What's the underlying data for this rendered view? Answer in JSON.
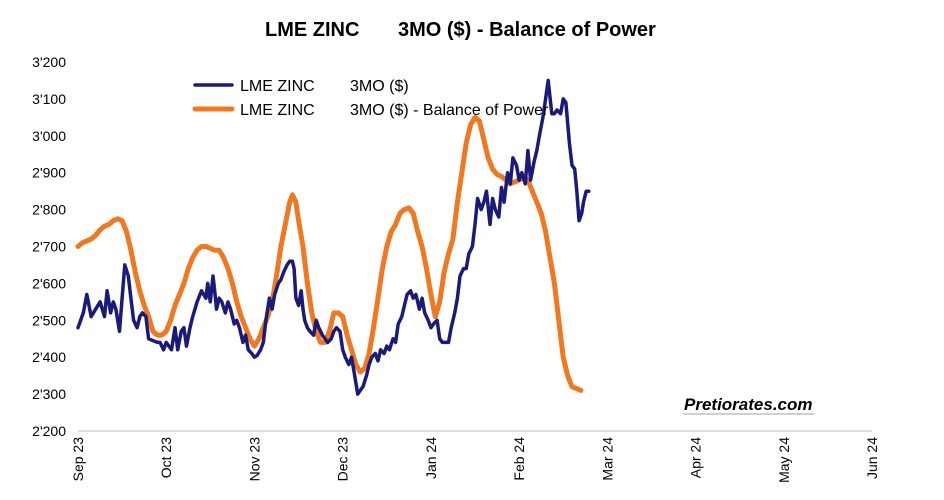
{
  "chart_data": {
    "type": "line",
    "title": "LME ZINC       3MO ($) - Balance of Power",
    "title_parts": [
      "LME ZINC",
      "3MO ($) - Balance of Power"
    ],
    "xlabel": "",
    "ylabel": "",
    "ylim": [
      2200,
      3200
    ],
    "yticks": [
      2200,
      2300,
      2400,
      2500,
      2600,
      2700,
      2800,
      2900,
      3000,
      3100,
      3200
    ],
    "ytick_labels": [
      "2'200",
      "2'300",
      "2'400",
      "2'500",
      "2'600",
      "2'700",
      "2'800",
      "2'900",
      "3'000",
      "3'100",
      "3'200"
    ],
    "xticks": [
      "Sep 23",
      "Oct 23",
      "Nov 23",
      "Dec 23",
      "Jan 24",
      "Feb 24",
      "Mar 24",
      "Apr 24",
      "May 24",
      "Jun 24"
    ],
    "grid": false,
    "legend_position": "top-left",
    "series": [
      {
        "name": "LME ZINC       3MO ($)",
        "legend_parts": [
          "LME ZINC",
          "3MO ($)"
        ],
        "color": "#1a1a7a",
        "points": [
          [
            0.0,
            2480
          ],
          [
            0.06,
            2520
          ],
          [
            0.1,
            2570
          ],
          [
            0.15,
            2510
          ],
          [
            0.2,
            2530
          ],
          [
            0.25,
            2550
          ],
          [
            0.3,
            2510
          ],
          [
            0.33,
            2580
          ],
          [
            0.37,
            2520
          ],
          [
            0.4,
            2550
          ],
          [
            0.43,
            2530
          ],
          [
            0.47,
            2470
          ],
          [
            0.5,
            2560
          ],
          [
            0.53,
            2650
          ],
          [
            0.57,
            2620
          ],
          [
            0.6,
            2560
          ],
          [
            0.63,
            2500
          ],
          [
            0.67,
            2480
          ],
          [
            0.7,
            2510
          ],
          [
            0.73,
            2520
          ],
          [
            0.77,
            2510
          ],
          [
            0.8,
            2450
          ],
          [
            0.85,
            2445
          ],
          [
            0.9,
            2440
          ],
          [
            0.93,
            2440
          ],
          [
            0.97,
            2420
          ],
          [
            1.0,
            2440
          ],
          [
            1.03,
            2430
          ],
          [
            1.06,
            2420
          ],
          [
            1.1,
            2480
          ],
          [
            1.13,
            2420
          ],
          [
            1.17,
            2470
          ],
          [
            1.2,
            2480
          ],
          [
            1.23,
            2430
          ],
          [
            1.27,
            2480
          ],
          [
            1.3,
            2510
          ],
          [
            1.35,
            2550
          ],
          [
            1.4,
            2580
          ],
          [
            1.45,
            2560
          ],
          [
            1.47,
            2600
          ],
          [
            1.5,
            2550
          ],
          [
            1.53,
            2620
          ],
          [
            1.55,
            2580
          ],
          [
            1.57,
            2530
          ],
          [
            1.6,
            2560
          ],
          [
            1.63,
            2550
          ],
          [
            1.67,
            2520
          ],
          [
            1.7,
            2550
          ],
          [
            1.73,
            2530
          ],
          [
            1.77,
            2490
          ],
          [
            1.8,
            2500
          ],
          [
            1.83,
            2480
          ],
          [
            1.87,
            2440
          ],
          [
            1.9,
            2460
          ],
          [
            1.93,
            2420
          ],
          [
            1.97,
            2410
          ],
          [
            2.0,
            2400
          ],
          [
            2.03,
            2405
          ],
          [
            2.07,
            2420
          ],
          [
            2.1,
            2440
          ],
          [
            2.13,
            2500
          ],
          [
            2.17,
            2560
          ],
          [
            2.2,
            2530
          ],
          [
            2.23,
            2570
          ],
          [
            2.27,
            2600
          ],
          [
            2.3,
            2610
          ],
          [
            2.33,
            2630
          ],
          [
            2.37,
            2650
          ],
          [
            2.4,
            2660
          ],
          [
            2.43,
            2660
          ],
          [
            2.45,
            2640
          ],
          [
            2.47,
            2560
          ],
          [
            2.5,
            2540
          ],
          [
            2.53,
            2580
          ],
          [
            2.55,
            2530
          ],
          [
            2.57,
            2500
          ],
          [
            2.6,
            2480
          ],
          [
            2.63,
            2470
          ],
          [
            2.67,
            2460
          ],
          [
            2.7,
            2500
          ],
          [
            2.73,
            2480
          ],
          [
            2.77,
            2460
          ],
          [
            2.8,
            2450
          ],
          [
            2.83,
            2440
          ],
          [
            2.87,
            2450
          ],
          [
            2.9,
            2470
          ],
          [
            2.93,
            2480
          ],
          [
            2.97,
            2470
          ],
          [
            3.0,
            2420
          ],
          [
            3.03,
            2400
          ],
          [
            3.07,
            2380
          ],
          [
            3.1,
            2400
          ],
          [
            3.13,
            2360
          ],
          [
            3.17,
            2300
          ],
          [
            3.2,
            2310
          ],
          [
            3.23,
            2320
          ],
          [
            3.27,
            2350
          ],
          [
            3.3,
            2380
          ],
          [
            3.33,
            2400
          ],
          [
            3.37,
            2410
          ],
          [
            3.4,
            2390
          ],
          [
            3.43,
            2420
          ],
          [
            3.47,
            2410
          ],
          [
            3.5,
            2430
          ],
          [
            3.53,
            2420
          ],
          [
            3.57,
            2450
          ],
          [
            3.6,
            2440
          ],
          [
            3.63,
            2490
          ],
          [
            3.67,
            2510
          ],
          [
            3.7,
            2540
          ],
          [
            3.73,
            2570
          ],
          [
            3.77,
            2580
          ],
          [
            3.8,
            2560
          ],
          [
            3.83,
            2570
          ],
          [
            3.87,
            2530
          ],
          [
            3.9,
            2560
          ],
          [
            3.93,
            2520
          ],
          [
            3.97,
            2500
          ],
          [
            4.0,
            2480
          ],
          [
            4.03,
            2490
          ],
          [
            4.07,
            2500
          ],
          [
            4.1,
            2450
          ],
          [
            4.13,
            2440
          ],
          [
            4.17,
            2440
          ],
          [
            4.2,
            2440
          ],
          [
            4.23,
            2480
          ],
          [
            4.27,
            2520
          ],
          [
            4.3,
            2560
          ],
          [
            4.33,
            2620
          ],
          [
            4.37,
            2640
          ],
          [
            4.4,
            2640
          ],
          [
            4.43,
            2680
          ],
          [
            4.47,
            2700
          ],
          [
            4.5,
            2760
          ],
          [
            4.53,
            2830
          ],
          [
            4.57,
            2800
          ],
          [
            4.6,
            2820
          ],
          [
            4.63,
            2850
          ],
          [
            4.67,
            2760
          ],
          [
            4.7,
            2830
          ],
          [
            4.73,
            2800
          ],
          [
            4.77,
            2780
          ],
          [
            4.8,
            2860
          ],
          [
            4.83,
            2820
          ],
          [
            4.87,
            2900
          ],
          [
            4.9,
            2870
          ],
          [
            4.93,
            2940
          ],
          [
            4.97,
            2920
          ],
          [
            5.0,
            2880
          ],
          [
            5.03,
            2900
          ],
          [
            5.07,
            2870
          ],
          [
            5.1,
            2960
          ],
          [
            5.13,
            2880
          ],
          [
            5.17,
            2930
          ],
          [
            5.2,
            2960
          ],
          [
            5.23,
            3000
          ],
          [
            5.27,
            3050
          ],
          [
            5.3,
            3100
          ],
          [
            5.33,
            3150
          ],
          [
            5.37,
            3060
          ],
          [
            5.4,
            3060
          ],
          [
            5.43,
            3070
          ],
          [
            5.47,
            3060
          ],
          [
            5.5,
            3100
          ],
          [
            5.53,
            3090
          ],
          [
            5.57,
            2980
          ],
          [
            5.6,
            2920
          ],
          [
            5.63,
            2910
          ],
          [
            5.65,
            2860
          ],
          [
            5.68,
            2770
          ],
          [
            5.71,
            2790
          ],
          [
            5.73,
            2820
          ],
          [
            5.76,
            2850
          ],
          [
            5.79,
            2850
          ]
        ]
      },
      {
        "name": "LME ZINC       3MO ($) - Balance of Power",
        "legend_parts": [
          "LME ZINC",
          "3MO ($) - Balance of Power"
        ],
        "color": "#f07820",
        "points": [
          [
            0.0,
            2700
          ],
          [
            0.05,
            2710
          ],
          [
            0.1,
            2715
          ],
          [
            0.15,
            2720
          ],
          [
            0.2,
            2730
          ],
          [
            0.25,
            2745
          ],
          [
            0.3,
            2755
          ],
          [
            0.35,
            2760
          ],
          [
            0.4,
            2770
          ],
          [
            0.45,
            2775
          ],
          [
            0.5,
            2770
          ],
          [
            0.55,
            2740
          ],
          [
            0.6,
            2690
          ],
          [
            0.65,
            2630
          ],
          [
            0.7,
            2580
          ],
          [
            0.75,
            2540
          ],
          [
            0.8,
            2510
          ],
          [
            0.85,
            2470
          ],
          [
            0.9,
            2460
          ],
          [
            0.95,
            2460
          ],
          [
            1.0,
            2470
          ],
          [
            1.05,
            2500
          ],
          [
            1.1,
            2540
          ],
          [
            1.15,
            2570
          ],
          [
            1.2,
            2600
          ],
          [
            1.25,
            2640
          ],
          [
            1.3,
            2670
          ],
          [
            1.35,
            2690
          ],
          [
            1.4,
            2700
          ],
          [
            1.45,
            2700
          ],
          [
            1.5,
            2695
          ],
          [
            1.55,
            2690
          ],
          [
            1.6,
            2690
          ],
          [
            1.65,
            2670
          ],
          [
            1.7,
            2640
          ],
          [
            1.75,
            2600
          ],
          [
            1.8,
            2550
          ],
          [
            1.85,
            2510
          ],
          [
            1.9,
            2480
          ],
          [
            1.95,
            2450
          ],
          [
            2.0,
            2430
          ],
          [
            2.05,
            2450
          ],
          [
            2.1,
            2480
          ],
          [
            2.15,
            2510
          ],
          [
            2.2,
            2550
          ],
          [
            2.25,
            2620
          ],
          [
            2.3,
            2700
          ],
          [
            2.35,
            2760
          ],
          [
            2.4,
            2820
          ],
          [
            2.43,
            2840
          ],
          [
            2.47,
            2820
          ],
          [
            2.5,
            2770
          ],
          [
            2.55,
            2700
          ],
          [
            2.6,
            2600
          ],
          [
            2.65,
            2520
          ],
          [
            2.7,
            2470
          ],
          [
            2.75,
            2440
          ],
          [
            2.8,
            2440
          ],
          [
            2.85,
            2470
          ],
          [
            2.9,
            2520
          ],
          [
            2.95,
            2520
          ],
          [
            3.0,
            2510
          ],
          [
            3.05,
            2460
          ],
          [
            3.1,
            2420
          ],
          [
            3.15,
            2380
          ],
          [
            3.2,
            2360
          ],
          [
            3.25,
            2370
          ],
          [
            3.3,
            2410
          ],
          [
            3.35,
            2480
          ],
          [
            3.4,
            2560
          ],
          [
            3.45,
            2640
          ],
          [
            3.5,
            2700
          ],
          [
            3.55,
            2740
          ],
          [
            3.6,
            2760
          ],
          [
            3.65,
            2790
          ],
          [
            3.7,
            2800
          ],
          [
            3.75,
            2805
          ],
          [
            3.8,
            2790
          ],
          [
            3.85,
            2740
          ],
          [
            3.9,
            2700
          ],
          [
            3.95,
            2640
          ],
          [
            4.0,
            2570
          ],
          [
            4.05,
            2510
          ],
          [
            4.1,
            2550
          ],
          [
            4.15,
            2630
          ],
          [
            4.2,
            2680
          ],
          [
            4.25,
            2720
          ],
          [
            4.3,
            2820
          ],
          [
            4.35,
            2900
          ],
          [
            4.4,
            2980
          ],
          [
            4.45,
            3030
          ],
          [
            4.5,
            3050
          ],
          [
            4.55,
            3040
          ],
          [
            4.6,
            2990
          ],
          [
            4.65,
            2940
          ],
          [
            4.7,
            2910
          ],
          [
            4.75,
            2895
          ],
          [
            4.8,
            2890
          ],
          [
            4.85,
            2880
          ],
          [
            4.9,
            2870
          ],
          [
            4.95,
            2875
          ],
          [
            5.0,
            2880
          ],
          [
            5.05,
            2885
          ],
          [
            5.1,
            2880
          ],
          [
            5.15,
            2850
          ],
          [
            5.2,
            2820
          ],
          [
            5.25,
            2790
          ],
          [
            5.3,
            2740
          ],
          [
            5.35,
            2670
          ],
          [
            5.4,
            2600
          ],
          [
            5.45,
            2500
          ],
          [
            5.5,
            2400
          ],
          [
            5.55,
            2350
          ],
          [
            5.6,
            2320
          ],
          [
            5.65,
            2315
          ],
          [
            5.7,
            2310
          ]
        ]
      }
    ],
    "x_domain": [
      0.0,
      9.0
    ]
  },
  "watermark": "Pretiorates.com"
}
